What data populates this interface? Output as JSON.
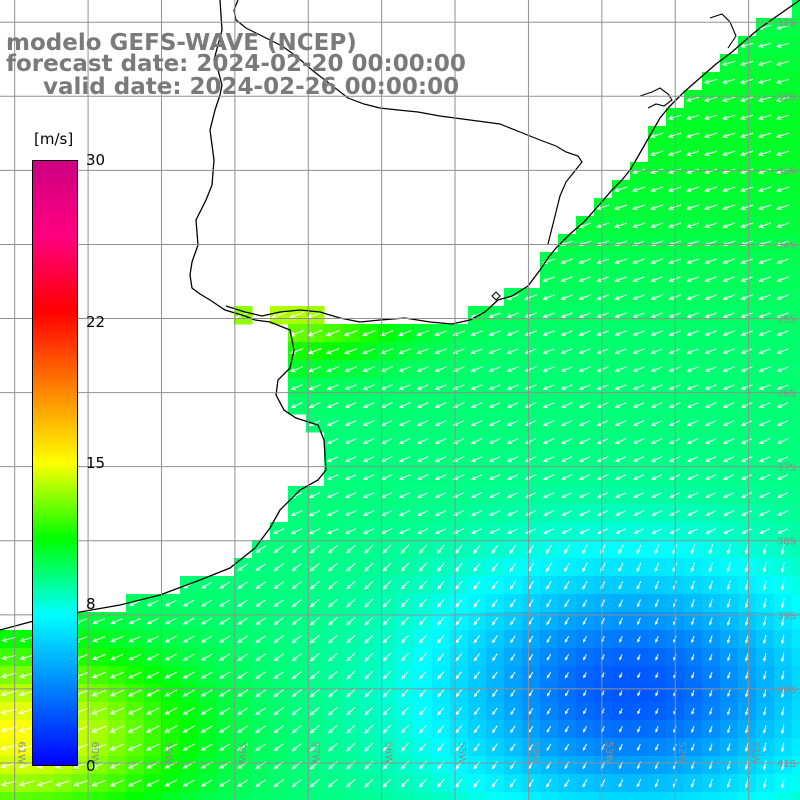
{
  "title": {
    "line1": "modelo GEFS-WAVE (NCEP)",
    "line2": "forecast date: 2024-02-20 00:00:00",
    "line3": "valid date: 2024-02-26 00:00:00"
  },
  "colorbar": {
    "unit": "[m/s]",
    "ticks": [
      "30",
      "22",
      "15",
      "8",
      "0"
    ],
    "tick_values": [
      30,
      22,
      15,
      8,
      0
    ],
    "min": 0,
    "max": 30,
    "stops": [
      "#0000ff",
      "#0080ff",
      "#00ffff",
      "#00ff00",
      "#ffff00",
      "#ff8000",
      "#ff0000",
      "#ff0080",
      "#cc0080"
    ]
  },
  "axes": {
    "lat_labels": [
      "31S",
      "32S",
      "33S",
      "34S",
      "35S",
      "36S",
      "37S",
      "38S",
      "39S",
      "40S",
      "41S"
    ],
    "lat_values": [
      -31,
      -32,
      -33,
      -34,
      -35,
      -36,
      -37,
      -38,
      -39,
      -40,
      -41
    ],
    "lon_labels": [
      "61W",
      "60W",
      "59W",
      "58W",
      "57W",
      "56W",
      "55W",
      "54W",
      "53W",
      "52W",
      "51W"
    ],
    "lon_values": [
      -61,
      -60,
      -59,
      -58,
      -57,
      -56,
      -55,
      -54,
      -53,
      -52,
      -51
    ],
    "lat_range": [
      -41.5,
      -30.7
    ],
    "lon_range": [
      -61.2,
      -50.3
    ],
    "grid": true
  },
  "colors": {
    "land": "#ffffff",
    "coastline": "#000000",
    "grid": "#909090",
    "title_text": "#7a7a7a",
    "arrows": "#ffffff",
    "axis_label": "#8c8c8c"
  }
}
